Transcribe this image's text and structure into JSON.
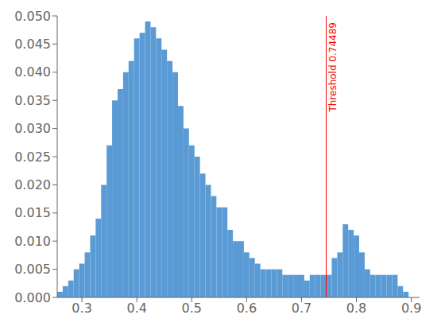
{
  "chart_data": {
    "type": "histogram",
    "bins": [
      0.255,
      0.265,
      0.275,
      0.285,
      0.295,
      0.305,
      0.315,
      0.325,
      0.335,
      0.345,
      0.355,
      0.365,
      0.375,
      0.385,
      0.395,
      0.405,
      0.415,
      0.425,
      0.435,
      0.445,
      0.455,
      0.465,
      0.475,
      0.485,
      0.495,
      0.505,
      0.515,
      0.525,
      0.535,
      0.545,
      0.555,
      0.565,
      0.575,
      0.585,
      0.595,
      0.605,
      0.615,
      0.625,
      0.635,
      0.645,
      0.655,
      0.665,
      0.675,
      0.685,
      0.695,
      0.705,
      0.715,
      0.725,
      0.735,
      0.745,
      0.755,
      0.765,
      0.775,
      0.785,
      0.795,
      0.805,
      0.815,
      0.825,
      0.835,
      0.845,
      0.855,
      0.865,
      0.875,
      0.885,
      0.895
    ],
    "values": [
      0.001,
      0.002,
      0.003,
      0.005,
      0.006,
      0.008,
      0.011,
      0.014,
      0.02,
      0.027,
      0.035,
      0.037,
      0.04,
      0.042,
      0.046,
      0.047,
      0.049,
      0.048,
      0.046,
      0.044,
      0.042,
      0.04,
      0.034,
      0.03,
      0.027,
      0.025,
      0.022,
      0.02,
      0.018,
      0.016,
      0.016,
      0.012,
      0.01,
      0.01,
      0.008,
      0.007,
      0.006,
      0.005,
      0.005,
      0.005,
      0.005,
      0.004,
      0.004,
      0.004,
      0.004,
      0.003,
      0.004,
      0.004,
      0.004,
      0.004,
      0.007,
      0.008,
      0.013,
      0.012,
      0.011,
      0.008,
      0.005,
      0.004,
      0.004,
      0.004,
      0.004,
      0.004,
      0.002,
      0.001
    ],
    "color": "#5b9bd5",
    "xlim": [
      0.255,
      0.915
    ],
    "ylim": [
      0.0,
      0.05
    ],
    "xticks": [
      0.3,
      0.4,
      0.5,
      0.6,
      0.7,
      0.8,
      0.9
    ],
    "yticks": [
      {
        "value": 0.0,
        "label": "0.000"
      },
      0.005,
      {
        "value": 0.01,
        "label": "0.010"
      },
      0.015,
      {
        "value": 0.02,
        "label": "0.020"
      },
      0.025,
      {
        "value": 0.03,
        "label": "0.030"
      },
      0.035,
      {
        "value": 0.04,
        "label": "0.040"
      },
      0.045,
      {
        "value": 0.05,
        "label": "0.050"
      }
    ],
    "annotations": [
      {
        "text": "Threshold 0.74489",
        "x": 0.74489,
        "color": "red"
      }
    ],
    "grid": false
  }
}
